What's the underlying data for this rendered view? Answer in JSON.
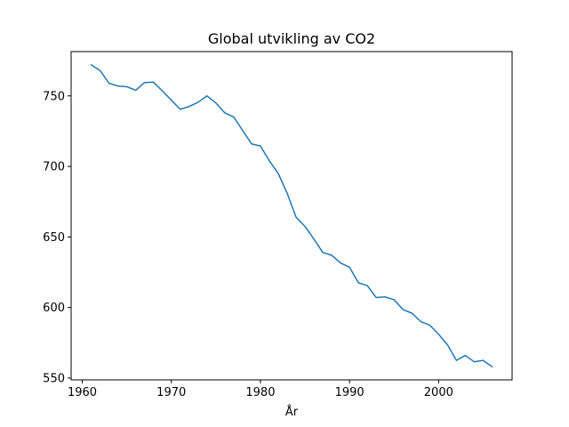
{
  "chart_data": {
    "type": "line",
    "title": "Global utvikling av CO2",
    "xlabel": "År",
    "ylabel": "",
    "xlim": [
      1958.75,
      2008.25
    ],
    "ylim": [
      548.7,
      781.4
    ],
    "x_ticks": [
      1960,
      1970,
      1980,
      1990,
      2000
    ],
    "y_ticks": [
      550,
      600,
      650,
      700,
      750
    ],
    "grid": false,
    "legend": "none",
    "colors": {
      "line": "#1f77b4",
      "axes": "#000000",
      "background": "#ffffff"
    },
    "series": [
      {
        "x": [
          1961,
          1962,
          1963,
          1964,
          1965,
          1966,
          1967,
          1968,
          1969,
          1970,
          1971,
          1972,
          1973,
          1974,
          1975,
          1976,
          1977,
          1978,
          1979,
          1980,
          1981,
          1982,
          1983,
          1984,
          1985,
          1986,
          1987,
          1988,
          1989,
          1990,
          1991,
          1992,
          1993,
          1994,
          1995,
          1996,
          1997,
          1998,
          1999,
          2000,
          2001,
          2002,
          2003,
          2004,
          2005,
          2006
        ],
        "values": [
          772,
          768,
          759,
          757,
          756.5,
          754,
          759.5,
          759.7,
          753.5,
          747,
          740.5,
          742.5,
          745.5,
          750,
          745,
          738,
          735,
          725.5,
          716,
          714.5,
          704,
          695,
          681,
          664,
          657.5,
          648.5,
          639,
          637,
          631.5,
          628.5,
          617.5,
          615.5,
          607,
          607.5,
          605.5,
          598.5,
          596,
          590,
          587.5,
          581,
          573.5,
          562.5,
          566,
          561.5,
          562.5,
          558
        ]
      }
    ]
  }
}
